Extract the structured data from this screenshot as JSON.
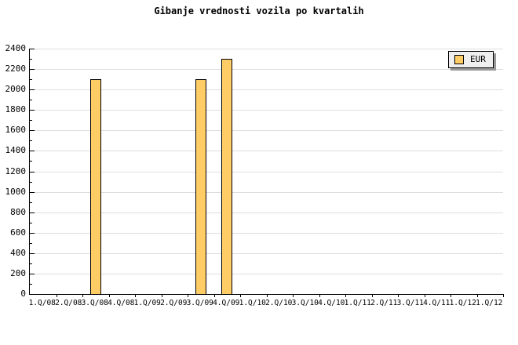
{
  "title": "Gibanje vrednosti vozila po kvartalih",
  "legend": {
    "label": "EUR",
    "swatch_color": "#ffcc66"
  },
  "colors": {
    "background": "#ffffff",
    "bar_fill": "#ffcc66",
    "bar_border": "#000000",
    "gridline": "#dedede",
    "axis": "#000000",
    "legend_bg": "#efefef",
    "legend_shadow": "#999999",
    "text": "#000000"
  },
  "chart_data": {
    "type": "bar",
    "title": "Gibanje vrednosti vozila po kvartalih",
    "categories": [
      "1.Q/08",
      "2.Q/08",
      "3.Q/08",
      "4.Q/08",
      "1.Q/09",
      "2.Q/09",
      "3.Q/09",
      "4.Q/09",
      "1.Q/10",
      "2.Q/10",
      "3.Q/10",
      "4.Q/10",
      "1.Q/11",
      "2.Q/11",
      "3.Q/11",
      "4.Q/11",
      "1.Q/12",
      "1.Q/12"
    ],
    "series": [
      {
        "name": "EUR",
        "color": "#ffcc66",
        "values": [
          null,
          null,
          2100,
          null,
          null,
          null,
          2100,
          2300,
          null,
          null,
          null,
          null,
          null,
          null,
          null,
          null,
          null,
          null
        ]
      }
    ],
    "xlabel": "",
    "ylabel": "",
    "ylim": [
      0,
      2400
    ],
    "ytick_major": 200,
    "ytick_minor": 100,
    "yticks": [
      0,
      200,
      400,
      600,
      800,
      1000,
      1200,
      1400,
      1600,
      1800,
      2000,
      2200,
      2400
    ],
    "grid": "horizontal-major",
    "legend_position": "top-right"
  }
}
